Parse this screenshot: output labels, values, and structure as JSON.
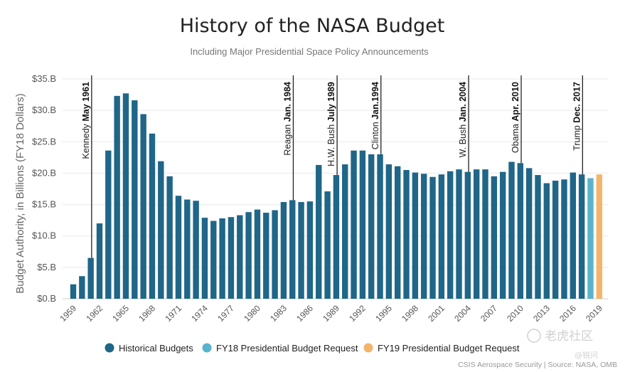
{
  "source_note": "CSIS Aerospace Security | Source: NASA, OMB",
  "watermark": {
    "brand": "老虎社区",
    "handle": "@锐问"
  },
  "chart_data": {
    "type": "bar",
    "title": "History of the NASA Budget",
    "subtitle": "Including Major Presidential Space Policy Announcements",
    "ylabel": "Budget Authority, in Billions (FY18 Dollars)",
    "xlabel": "",
    "ylim": [
      0,
      35
    ],
    "yticks": [
      0,
      5,
      10,
      15,
      20,
      25,
      30,
      35
    ],
    "ytick_labels": [
      "$0.B",
      "$5.B",
      "$10.B",
      "$15.B",
      "$20.B",
      "$25.B",
      "$30.B",
      "$35.B"
    ],
    "xticks": [
      1959,
      1962,
      1965,
      1968,
      1971,
      1974,
      1977,
      1980,
      1983,
      1986,
      1989,
      1992,
      1995,
      1998,
      2001,
      2004,
      2007,
      2010,
      2013,
      2016,
      2019
    ],
    "grid": true,
    "legend_position": "bottom",
    "colors": {
      "historical": "#1f6688",
      "fy18": "#59b3cc",
      "fy19": "#f2b56b"
    },
    "series": [
      {
        "name": "Historical Budgets",
        "x": [
          1959,
          1960,
          1961,
          1962,
          1963,
          1964,
          1965,
          1966,
          1967,
          1968,
          1969,
          1970,
          1971,
          1972,
          1973,
          1974,
          1975,
          1976,
          1977,
          1978,
          1979,
          1980,
          1981,
          1982,
          1983,
          1984,
          1985,
          1986,
          1987,
          1988,
          1989,
          1990,
          1991,
          1992,
          1993,
          1994,
          1995,
          1996,
          1997,
          1998,
          1999,
          2000,
          2001,
          2002,
          2003,
          2004,
          2005,
          2006,
          2007,
          2008,
          2009,
          2010,
          2011,
          2012,
          2013,
          2014,
          2015,
          2016,
          2017
        ],
        "values": [
          2.3,
          3.6,
          6.5,
          12.0,
          23.6,
          32.3,
          32.7,
          31.6,
          29.4,
          26.3,
          21.9,
          19.5,
          16.4,
          15.8,
          15.6,
          12.9,
          12.4,
          12.8,
          13.0,
          13.3,
          13.8,
          14.2,
          13.7,
          14.1,
          15.4,
          15.7,
          15.4,
          15.5,
          21.3,
          17.1,
          19.7,
          21.4,
          23.6,
          23.6,
          23.0,
          23.0,
          21.4,
          21.1,
          20.5,
          20.1,
          19.9,
          19.4,
          19.8,
          20.3,
          20.6,
          20.2,
          20.6,
          20.6,
          19.5,
          20.2,
          21.8,
          21.6,
          20.8,
          19.7,
          18.4,
          18.8,
          19.0,
          20.1,
          19.8
        ]
      },
      {
        "name": "FY18 Presidential Budget Request",
        "x": [
          2018
        ],
        "values": [
          19.2
        ]
      },
      {
        "name": "FY19 Presidential Budget Request",
        "x": [
          2019
        ],
        "values": [
          19.8
        ]
      }
    ],
    "annotations": [
      {
        "year": 1961,
        "name": "Kennedy",
        "date": "May 1961"
      },
      {
        "year": 1984,
        "name": "Reagan",
        "date": "Jan. 1984"
      },
      {
        "year": 1989,
        "name": "H.W. Bush",
        "date": "July 1989"
      },
      {
        "year": 1994,
        "name": "Clinton",
        "date": "Jan.1994"
      },
      {
        "year": 2004,
        "name": "W. Bush",
        "date": "Jan. 2004"
      },
      {
        "year": 2010,
        "name": "Obama",
        "date": "Apr. 2010"
      },
      {
        "year": 2017,
        "name": "Trump",
        "date": "Dec. 2017"
      }
    ]
  }
}
